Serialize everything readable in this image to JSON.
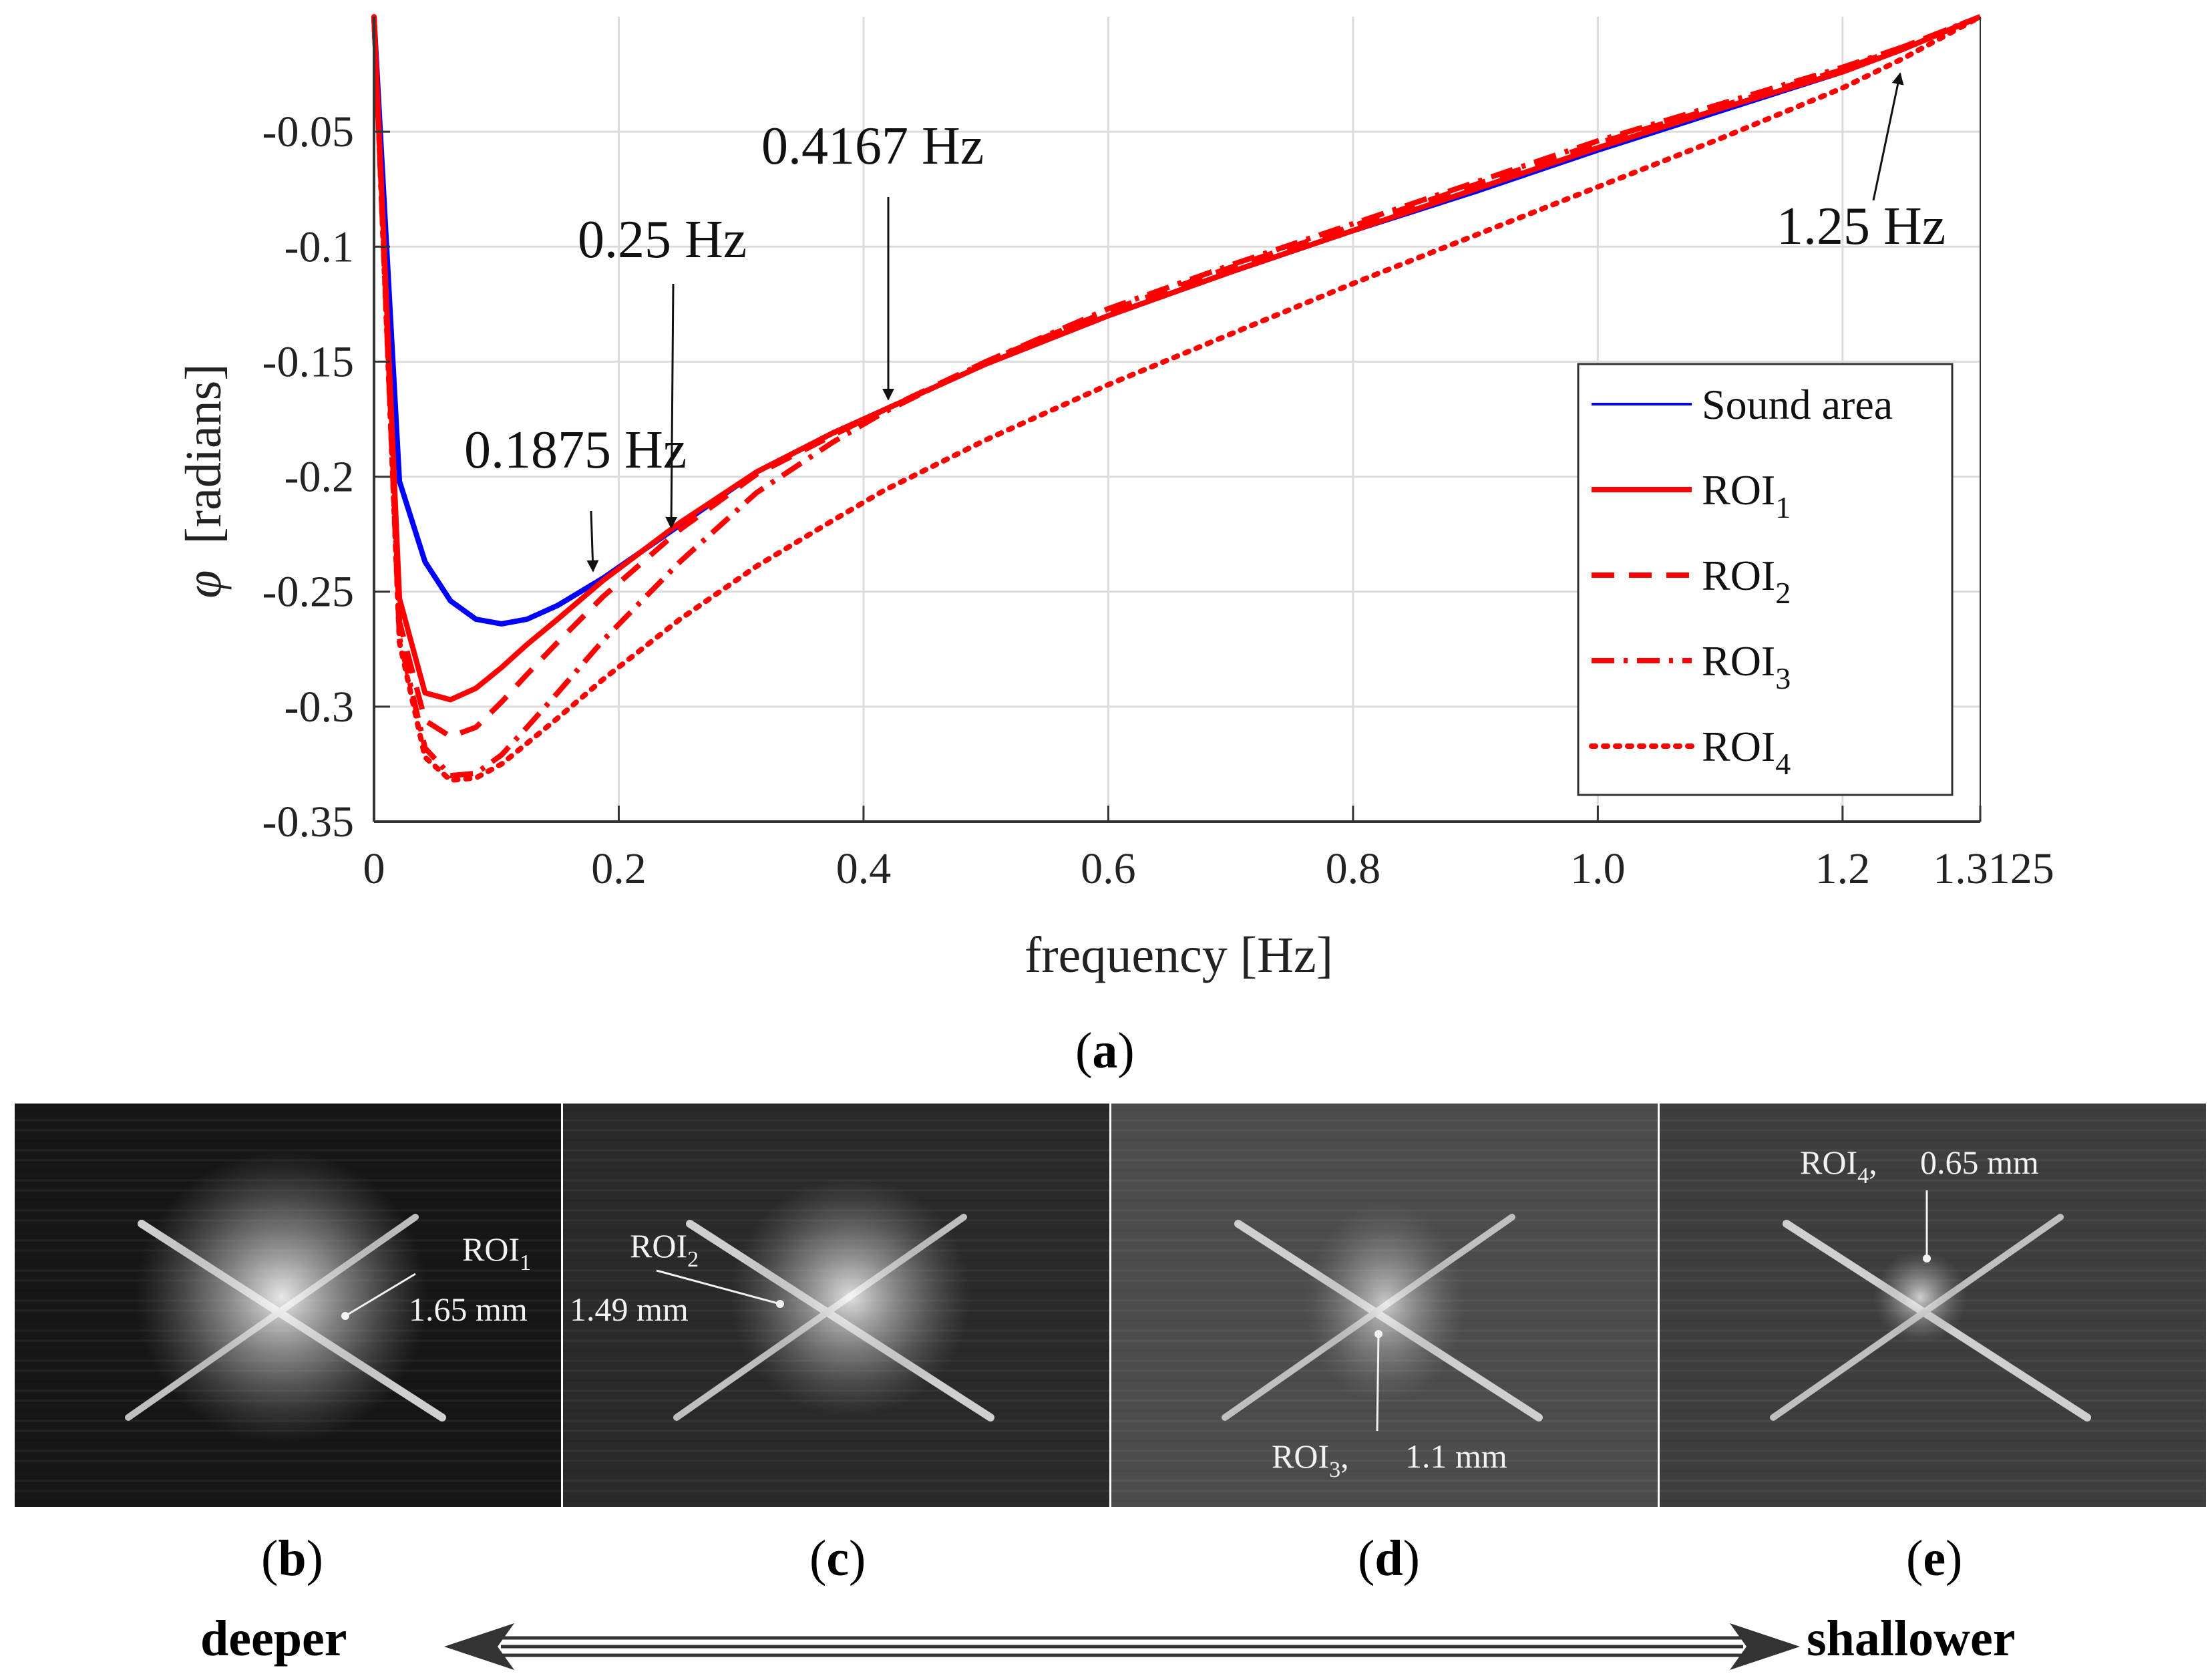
{
  "chart_data": {
    "type": "line",
    "xlabel": "frequency [Hz]",
    "ylabel_symbol": "φ",
    "ylabel_unit": "[radians]",
    "xlim": [
      0,
      1.3125
    ],
    "ylim": [
      -0.35,
      0
    ],
    "xticks": [
      0,
      0.2,
      0.4,
      0.6,
      0.8,
      1.0,
      1.2,
      1.3125
    ],
    "xtick_labels": [
      "0",
      "0.2",
      "0.4",
      "0.6",
      "0.8",
      "1.0",
      "1.2",
      "1.3125"
    ],
    "yticks": [
      -0.05,
      -0.1,
      -0.15,
      -0.2,
      -0.25,
      -0.3,
      -0.35
    ],
    "ytick_labels": [
      "-0.05",
      "-0.1",
      "-0.15",
      "-0.2",
      "-0.25",
      "-0.3",
      "-0.35"
    ],
    "grid": true,
    "legend_position": "bottom-right",
    "series": [
      {
        "name": "Sound area",
        "legend_main": "Sound area",
        "legend_sub": "",
        "color": "#0000ff",
        "dash": "solid",
        "x": [
          0,
          0.0208,
          0.0417,
          0.0625,
          0.0833,
          0.1042,
          0.125,
          0.15,
          0.1875,
          0.25,
          0.3125,
          0.375,
          0.4167,
          0.5,
          0.6,
          0.7,
          0.8,
          0.9,
          1.0,
          1.1,
          1.2,
          1.25,
          1.3125
        ],
        "y": [
          0,
          -0.202,
          -0.237,
          -0.254,
          -0.262,
          -0.264,
          -0.262,
          -0.256,
          -0.244,
          -0.221,
          -0.198,
          -0.181,
          -0.171,
          -0.151,
          -0.13,
          -0.111,
          -0.093,
          -0.076,
          -0.058,
          -0.041,
          -0.024,
          -0.014,
          0
        ]
      },
      {
        "name": "ROI1",
        "legend_main": "ROI",
        "legend_sub": "1",
        "color": "#ff0000",
        "dash": "solid",
        "x": [
          0,
          0.0208,
          0.0417,
          0.0625,
          0.0833,
          0.1042,
          0.125,
          0.15,
          0.1875,
          0.25,
          0.3125,
          0.375,
          0.4167,
          0.5,
          0.6,
          0.7,
          0.8,
          0.9,
          1.0,
          1.1,
          1.2,
          1.25,
          1.3125
        ],
        "y": [
          0,
          -0.253,
          -0.294,
          -0.297,
          -0.292,
          -0.283,
          -0.273,
          -0.262,
          -0.245,
          -0.22,
          -0.198,
          -0.181,
          -0.171,
          -0.151,
          -0.13,
          -0.111,
          -0.093,
          -0.075,
          -0.057,
          -0.04,
          -0.024,
          -0.014,
          0
        ]
      },
      {
        "name": "ROI2",
        "legend_main": "ROI",
        "legend_sub": "2",
        "color": "#ff0000",
        "dash": "dash",
        "x": [
          0,
          0.0208,
          0.0417,
          0.0625,
          0.0833,
          0.1042,
          0.125,
          0.15,
          0.1875,
          0.25,
          0.3125,
          0.375,
          0.4167,
          0.5,
          0.6,
          0.7,
          0.8,
          0.9,
          1.0,
          1.1,
          1.2,
          1.25,
          1.3125
        ],
        "y": [
          0,
          -0.263,
          -0.306,
          -0.313,
          -0.309,
          -0.298,
          -0.286,
          -0.272,
          -0.252,
          -0.223,
          -0.199,
          -0.182,
          -0.171,
          -0.15,
          -0.128,
          -0.109,
          -0.091,
          -0.073,
          -0.055,
          -0.039,
          -0.023,
          -0.013,
          0
        ]
      },
      {
        "name": "ROI3",
        "legend_main": "ROI",
        "legend_sub": "3",
        "color": "#ff0000",
        "dash": "dashdot",
        "x": [
          0,
          0.0208,
          0.0417,
          0.0625,
          0.0833,
          0.1042,
          0.125,
          0.15,
          0.1875,
          0.25,
          0.3125,
          0.375,
          0.4167,
          0.5,
          0.6,
          0.7,
          0.8,
          0.9,
          1.0,
          1.1,
          1.2,
          1.25,
          1.3125
        ],
        "y": [
          0,
          -0.27,
          -0.318,
          -0.33,
          -0.329,
          -0.321,
          -0.309,
          -0.294,
          -0.271,
          -0.237,
          -0.207,
          -0.185,
          -0.172,
          -0.15,
          -0.127,
          -0.108,
          -0.09,
          -0.072,
          -0.054,
          -0.038,
          -0.022,
          -0.013,
          0
        ]
      },
      {
        "name": "ROI4",
        "legend_main": "ROI",
        "legend_sub": "4",
        "color": "#ff0000",
        "dash": "dot",
        "x": [
          0,
          0.0208,
          0.0417,
          0.0625,
          0.0833,
          0.1042,
          0.125,
          0.15,
          0.1875,
          0.25,
          0.3125,
          0.375,
          0.4167,
          0.5,
          0.6,
          0.7,
          0.8,
          0.9,
          1.0,
          1.1,
          1.2,
          1.25,
          1.3125
        ],
        "y": [
          0,
          -0.272,
          -0.322,
          -0.332,
          -0.331,
          -0.325,
          -0.316,
          -0.305,
          -0.288,
          -0.262,
          -0.239,
          -0.219,
          -0.206,
          -0.184,
          -0.16,
          -0.138,
          -0.116,
          -0.095,
          -0.074,
          -0.053,
          -0.031,
          -0.018,
          0
        ]
      }
    ],
    "annotations": [
      {
        "text": "0.1875 Hz",
        "x": 0.1875,
        "y": -0.246
      },
      {
        "text": "0.25 Hz",
        "x": 0.245,
        "y": -0.224
      },
      {
        "text": "0.4167 Hz",
        "x": 0.4167,
        "y": -0.171
      },
      {
        "text": "1.25 Hz",
        "x": 1.24,
        "y": -0.011
      }
    ]
  },
  "figure": {
    "caption_a_open": "(",
    "caption_a_letter": "a",
    "caption_a_close": ")",
    "panels": [
      {
        "id": "b",
        "letter": "b",
        "roi_main": "ROI",
        "roi_sub": "1",
        "roi_suffix": "",
        "depth": "1.65 mm"
      },
      {
        "id": "c",
        "letter": "c",
        "roi_main": "ROI",
        "roi_sub": "2",
        "roi_suffix": "",
        "depth": "1.49 mm"
      },
      {
        "id": "d",
        "letter": "d",
        "roi_main": "ROI",
        "roi_sub": "3",
        "roi_suffix": ",",
        "depth": "1.1 mm"
      },
      {
        "id": "e",
        "letter": "e",
        "roi_main": "ROI",
        "roi_sub": "4",
        "roi_suffix": ",",
        "depth": "0.65 mm"
      }
    ],
    "deeper": "deeper",
    "shallower": "shallower"
  }
}
